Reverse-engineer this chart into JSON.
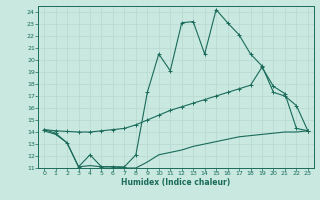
{
  "xlabel": "Humidex (Indice chaleur)",
  "bg_color": "#c8e8e0",
  "grid_color": "#b8d8d0",
  "line_color": "#1a6b5a",
  "xlim": [
    -0.5,
    23.5
  ],
  "ylim": [
    11,
    24.5
  ],
  "yticks": [
    11,
    12,
    13,
    14,
    15,
    16,
    17,
    18,
    19,
    20,
    21,
    22,
    23,
    24
  ],
  "xticks": [
    0,
    1,
    2,
    3,
    4,
    5,
    6,
    7,
    8,
    9,
    10,
    11,
    12,
    13,
    14,
    15,
    16,
    17,
    18,
    19,
    20,
    21,
    22,
    23
  ],
  "line1_x": [
    0,
    1,
    2,
    3,
    4,
    5,
    6,
    7,
    8,
    9,
    10,
    11,
    12,
    13,
    14,
    15,
    16,
    17,
    18,
    19,
    20,
    21,
    22,
    23
  ],
  "line1_y": [
    14.2,
    13.9,
    13.1,
    11.1,
    12.1,
    11.1,
    11.1,
    11.1,
    12.1,
    17.3,
    20.5,
    19.1,
    23.1,
    23.2,
    20.5,
    24.2,
    23.1,
    22.1,
    20.5,
    19.5,
    17.3,
    17.0,
    16.2,
    14.1
  ],
  "line2_x": [
    0,
    1,
    2,
    3,
    4,
    5,
    6,
    7,
    8,
    9,
    10,
    11,
    12,
    13,
    14,
    15,
    16,
    17,
    18,
    19,
    20,
    21,
    22,
    23
  ],
  "line2_y": [
    14.2,
    14.1,
    14.05,
    14.0,
    14.0,
    14.1,
    14.2,
    14.3,
    14.6,
    15.0,
    15.4,
    15.8,
    16.1,
    16.4,
    16.7,
    17.0,
    17.3,
    17.6,
    17.9,
    19.4,
    17.8,
    17.2,
    14.3,
    14.1
  ],
  "line3_x": [
    0,
    1,
    2,
    3,
    4,
    5,
    6,
    7,
    8,
    9,
    10,
    11,
    12,
    13,
    14,
    15,
    16,
    17,
    18,
    19,
    20,
    21,
    22,
    23
  ],
  "line3_y": [
    14.1,
    13.8,
    13.1,
    11.1,
    11.2,
    11.1,
    11.1,
    11.0,
    11.0,
    11.5,
    12.1,
    12.3,
    12.5,
    12.8,
    13.0,
    13.2,
    13.4,
    13.6,
    13.7,
    13.8,
    13.9,
    14.0,
    14.0,
    14.1
  ]
}
